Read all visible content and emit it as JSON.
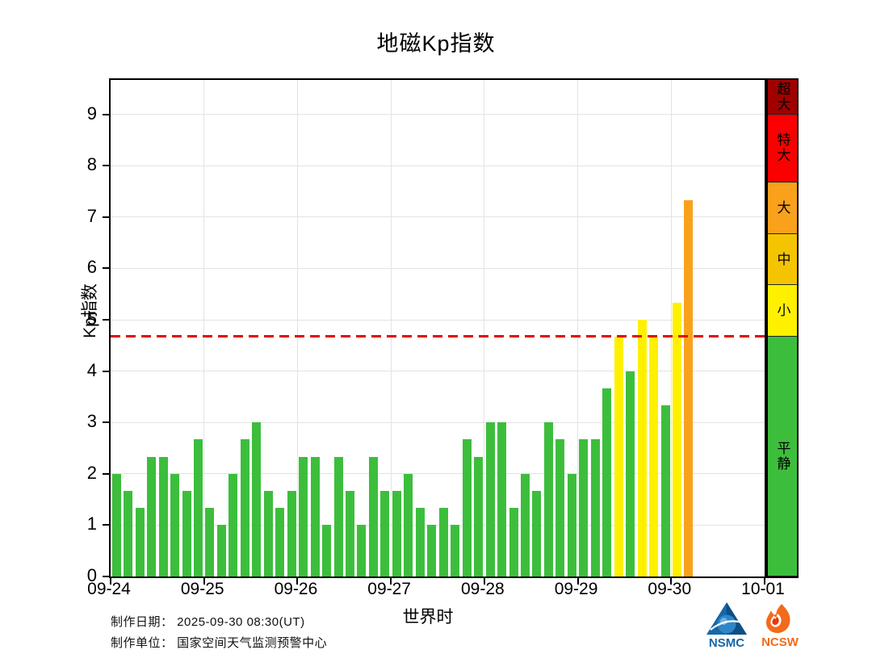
{
  "chart_data": {
    "type": "bar",
    "title": "地磁Kp指数",
    "xlabel": "世界时",
    "ylabel": "Kp指数",
    "ylim": [
      0,
      9.67
    ],
    "yticks": [
      0,
      1,
      2,
      3,
      4,
      5,
      6,
      7,
      8,
      9
    ],
    "x_tick_labels": [
      "09-24",
      "09-25",
      "09-26",
      "09-27",
      "09-28",
      "09-29",
      "09-30",
      "10-01"
    ],
    "bars_per_day": 8,
    "grid": true,
    "threshold_line": {
      "value": 4.67,
      "color": "#e60000",
      "style": "dashed"
    },
    "series": [
      {
        "date": "09-24",
        "values": [
          2,
          1.67,
          1.33,
          2.33,
          2.33,
          2,
          1.67,
          2.67
        ]
      },
      {
        "date": "09-25",
        "values": [
          1.33,
          1,
          2,
          2.67,
          3,
          1.67,
          1.33,
          1.67
        ]
      },
      {
        "date": "09-26",
        "values": [
          2.33,
          2.33,
          1,
          2.33,
          1.67,
          1,
          2.33,
          1.67
        ]
      },
      {
        "date": "09-27",
        "values": [
          1.67,
          2,
          1.33,
          1,
          1.33,
          1,
          2.67,
          2.33
        ]
      },
      {
        "date": "09-28",
        "values": [
          3,
          3,
          1.33,
          2,
          1.67,
          3,
          2.67,
          2
        ]
      },
      {
        "date": "09-29",
        "values": [
          2.67,
          2.67,
          3.67,
          4.67,
          4,
          5,
          4.67,
          3.33
        ]
      },
      {
        "date": "09-30",
        "values": [
          5.33,
          7.33
        ]
      }
    ],
    "color_rules": [
      {
        "min": 6.67,
        "color": "#F9A11B"
      },
      {
        "min": 5.67,
        "color": "#F5C400"
      },
      {
        "min": 4.67,
        "color": "#FFF000"
      },
      {
        "min": 0,
        "color": "#3CBE3C"
      }
    ],
    "legend_bands": [
      {
        "label": "超大",
        "from": 9.0,
        "to": 9.67,
        "color": "#A00000"
      },
      {
        "label": "特大",
        "from": 7.67,
        "to": 9.0,
        "color": "#FA0000"
      },
      {
        "label": "大",
        "from": 6.67,
        "to": 7.67,
        "color": "#F9A11B"
      },
      {
        "label": "中",
        "from": 5.67,
        "to": 6.67,
        "color": "#F5C400"
      },
      {
        "label": "小",
        "from": 4.67,
        "to": 5.67,
        "color": "#FFF000"
      },
      {
        "label": "平静",
        "from": 0,
        "to": 4.67,
        "color": "#3CBE3C"
      }
    ]
  },
  "footer": {
    "date_line": "制作日期： 2025-09-30 08:30(UT)",
    "org_line": "制作单位： 国家空间天气监测预警中心"
  },
  "logos": {
    "nsmc_label": "NSMC",
    "ncsw_label": "NCSW",
    "nsmc_color": "#1667A8",
    "ncsw_color": "#F26A1B"
  }
}
